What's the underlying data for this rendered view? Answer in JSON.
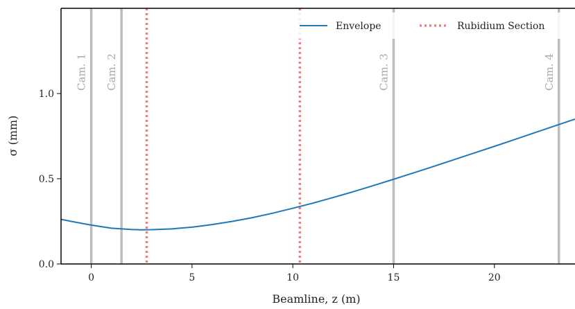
{
  "chart_data": {
    "type": "line",
    "xlabel": "Beamline, z (m)",
    "ylabel": "σ (mm)",
    "xlim": [
      -1.5,
      24.0
    ],
    "ylim": [
      0.0,
      1.5
    ],
    "xticks": [
      0,
      5,
      10,
      15,
      20
    ],
    "yticks": [
      0.0,
      0.5,
      1.0
    ],
    "xtick_labels": [
      "0",
      "5",
      "10",
      "15",
      "20"
    ],
    "ytick_labels": [
      "0.0",
      "0.5",
      "1.0"
    ],
    "grid": false,
    "legend_position": "top-right",
    "series": [
      {
        "name": "Envelope",
        "color": "#1f77b4",
        "style": "solid",
        "x": [
          -1.5,
          -1.0,
          0.0,
          1.0,
          2.0,
          2.5,
          3.0,
          4.0,
          5.0,
          6.0,
          7.0,
          8.0,
          9.0,
          10.0,
          11.0,
          12.0,
          13.0,
          14.0,
          15.0,
          16.0,
          17.0,
          18.0,
          19.0,
          20.0,
          21.0,
          22.0,
          23.0,
          24.0
        ],
        "y": [
          0.262,
          0.25,
          0.228,
          0.21,
          0.202,
          0.2,
          0.201,
          0.206,
          0.216,
          0.231,
          0.25,
          0.272,
          0.298,
          0.327,
          0.357,
          0.39,
          0.424,
          0.46,
          0.497,
          0.535,
          0.573,
          0.612,
          0.651,
          0.69,
          0.73,
          0.77,
          0.81,
          0.85
        ]
      }
    ],
    "rubidium_section": {
      "name": "Rubidium Section",
      "color": "#f08080",
      "style": "dotted",
      "x": [
        2.75,
        10.35
      ]
    },
    "cameras": [
      {
        "label": "Cam. 1",
        "z": 0.0
      },
      {
        "label": "Cam. 2",
        "z": 1.5
      },
      {
        "label": "Cam. 3",
        "z": 15.0
      },
      {
        "label": "Cam. 4",
        "z": 23.2
      }
    ],
    "camera_line_color": "#bdbdbd"
  }
}
